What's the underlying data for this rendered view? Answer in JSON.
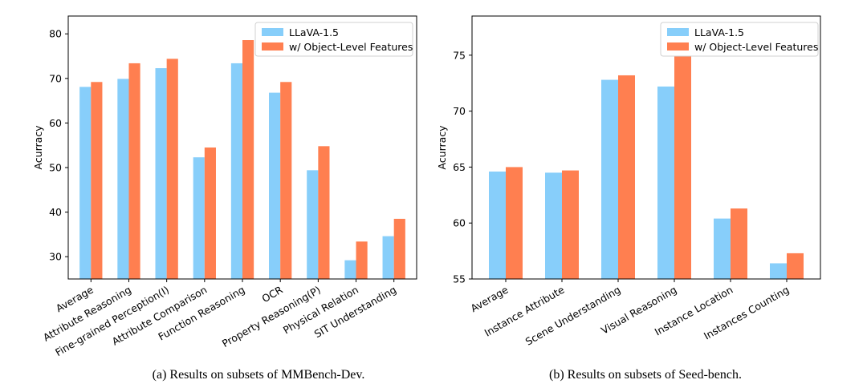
{
  "colors": {
    "series0": "#87cefa",
    "series1": "#ff7f50",
    "axis": "#000000"
  },
  "chart_data": [
    {
      "type": "bar",
      "id": "a",
      "caption": "(a) Results on subsets of MMBench-Dev.",
      "ylabel": "Acurracy",
      "xlabel": "",
      "ylim": [
        25,
        84
      ],
      "yticks": [
        30,
        40,
        50,
        60,
        70,
        80
      ],
      "legend_position": "top-right",
      "categories": [
        "Average",
        "Attribute Reasoning",
        "Fine-grained Perception(I)",
        "Attribute Comparison",
        "Function Reasoning",
        "OCR",
        "Property Reasoning(P)",
        "Physical Relation",
        "SIT Understanding"
      ],
      "series": [
        {
          "name": "LLaVA-1.5",
          "values": [
            68.1,
            69.9,
            72.3,
            52.3,
            73.4,
            66.8,
            49.4,
            29.2,
            34.6
          ]
        },
        {
          "name": "w/ Object-Level Features",
          "values": [
            69.2,
            73.4,
            74.4,
            54.5,
            78.6,
            69.2,
            54.8,
            33.4,
            38.5
          ]
        }
      ]
    },
    {
      "type": "bar",
      "id": "b",
      "caption": "(b) Results on subsets of Seed-bench.",
      "ylabel": "Acurracy",
      "xlabel": "",
      "ylim": [
        55,
        78.5
      ],
      "yticks": [
        55,
        60,
        65,
        70,
        75
      ],
      "legend_position": "top-right",
      "categories": [
        "Average",
        "Instance Attribute",
        "Scene Understanding",
        "Visual Reasoning",
        "Instance Location",
        "Instances Counting"
      ],
      "series": [
        {
          "name": "LLaVA-1.5",
          "values": [
            64.6,
            64.5,
            72.8,
            72.2,
            60.4,
            56.4
          ]
        },
        {
          "name": "w/ Object-Level Features",
          "values": [
            65.0,
            64.7,
            73.2,
            74.9,
            61.3,
            57.3
          ]
        }
      ]
    }
  ]
}
